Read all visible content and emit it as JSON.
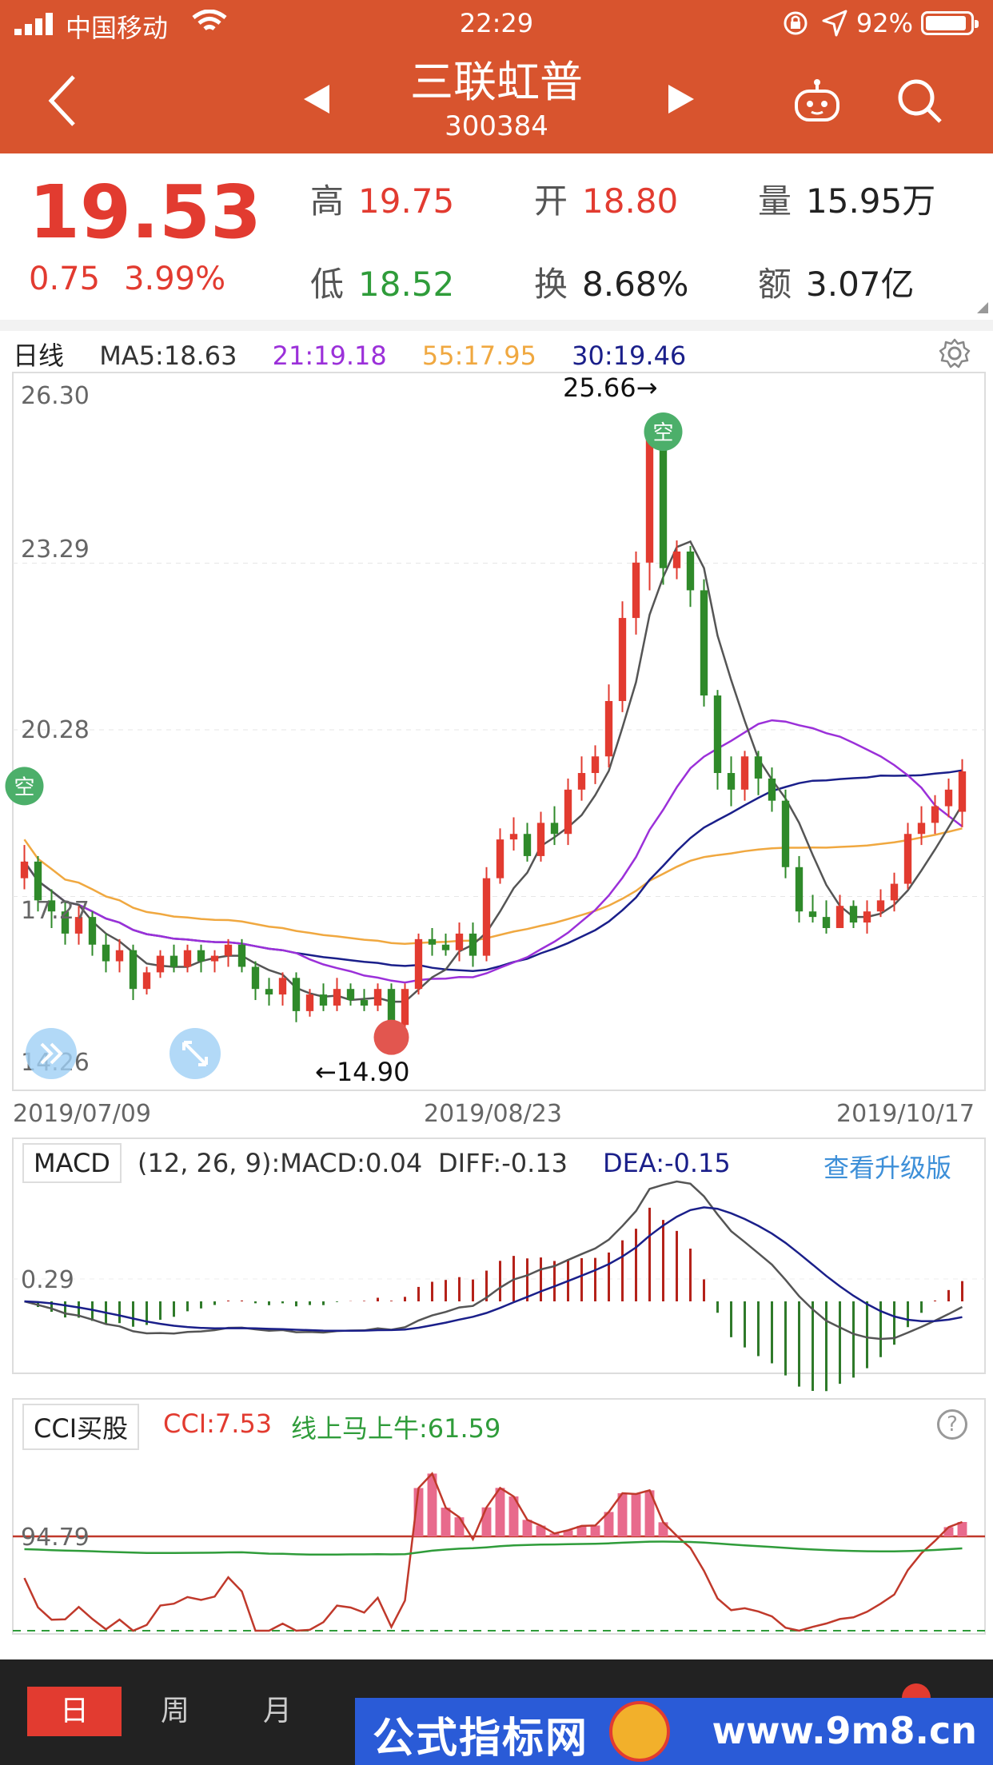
{
  "status_bar": {
    "carrier": "中国移动",
    "time": "22:29",
    "battery": "92%",
    "battery_level": 0.92
  },
  "header": {
    "title": "三联虹普",
    "code": "300384"
  },
  "quote": {
    "price": "19.53",
    "change": "0.75",
    "change_pct": "3.99%",
    "high_label": "高",
    "high": "19.75",
    "open_label": "开",
    "open": "18.80",
    "volume_label": "量",
    "volume": "15.95万",
    "low_label": "低",
    "low": "18.52",
    "turnover_label": "换",
    "turnover": "8.68%",
    "amount_label": "额",
    "amount": "3.07亿"
  },
  "kline": {
    "period": "日线",
    "ma5": "MA5:18.63",
    "ma21": "21:19.18",
    "ma55": "55:17.95",
    "ma30": "30:19.46",
    "y_labels": [
      "26.30",
      "23.29",
      "20.28",
      "17.27",
      "14.26"
    ],
    "high_mark": "25.66→",
    "low_mark": "←14.90",
    "dates": [
      "2019/07/09",
      "2019/08/23",
      "2019/10/17"
    ],
    "signal_label": "空",
    "colors": {
      "ma5": "#555555",
      "ma21": "#9b30d9",
      "ma55": "#f0a840",
      "ma30": "#1a1f8a",
      "up": "#e23b30",
      "down": "#2f8a2a"
    }
  },
  "macd": {
    "title": "MACD",
    "params": "(12, 26, 9):MACD:0.04",
    "diff": "DIFF:-0.13",
    "dea": "DEA:-0.15",
    "upgrade": "查看升级版",
    "y_label": "0.29"
  },
  "cci": {
    "title": "CCI买股",
    "value": "CCI:7.53",
    "line": "线上马上牛:61.59",
    "y_label": "94.79"
  },
  "tabs": [
    "日",
    "周",
    "月"
  ],
  "watermark": {
    "text": "公式指标网",
    "url": "www.9m8.cn"
  },
  "chart_data": [
    {
      "type": "candlestick",
      "title": "",
      "ylim": [
        14.26,
        26.3
      ],
      "x_start": "2019/07/09",
      "x_mid": "2019/08/23",
      "x_end": "2019/10/17",
      "high": 25.66,
      "low": 14.9,
      "series": [
        {
          "name": "MA5",
          "value": 18.63
        },
        {
          "name": "21",
          "value": 19.18
        },
        {
          "name": "55",
          "value": 17.95
        },
        {
          "name": "30",
          "value": 19.46
        }
      ],
      "candles": [
        [
          17.6,
          17.9,
          18.2,
          17.4
        ],
        [
          17.9,
          17.2,
          18.0,
          17.0
        ],
        [
          17.2,
          17.0,
          17.4,
          16.7
        ],
        [
          17.0,
          16.6,
          17.2,
          16.4
        ],
        [
          16.6,
          16.9,
          17.1,
          16.4
        ],
        [
          16.9,
          16.4,
          17.0,
          16.2
        ],
        [
          16.4,
          16.1,
          16.6,
          15.9
        ],
        [
          16.1,
          16.3,
          16.5,
          15.9
        ],
        [
          16.3,
          15.6,
          16.4,
          15.4
        ],
        [
          15.6,
          15.9,
          16.0,
          15.5
        ],
        [
          15.9,
          16.2,
          16.3,
          15.8
        ],
        [
          16.2,
          16.0,
          16.4,
          15.9
        ],
        [
          16.0,
          16.3,
          16.4,
          15.9
        ],
        [
          16.3,
          16.1,
          16.4,
          15.9
        ],
        [
          16.1,
          16.2,
          16.3,
          15.9
        ],
        [
          16.2,
          16.4,
          16.5,
          16.0
        ],
        [
          16.4,
          16.0,
          16.5,
          15.9
        ],
        [
          16.0,
          15.6,
          16.1,
          15.4
        ],
        [
          15.6,
          15.5,
          15.8,
          15.3
        ],
        [
          15.5,
          15.8,
          15.9,
          15.3
        ],
        [
          15.8,
          15.2,
          15.9,
          15.0
        ],
        [
          15.2,
          15.5,
          15.6,
          15.1
        ],
        [
          15.5,
          15.3,
          15.7,
          15.2
        ],
        [
          15.3,
          15.6,
          15.8,
          15.2
        ],
        [
          15.6,
          15.4,
          15.7,
          15.3
        ],
        [
          15.4,
          15.3,
          15.6,
          15.2
        ],
        [
          15.3,
          15.6,
          15.7,
          15.2
        ],
        [
          15.6,
          14.95,
          15.7,
          14.9
        ],
        [
          14.95,
          15.6,
          15.7,
          14.9
        ],
        [
          15.6,
          16.5,
          16.6,
          15.5
        ],
        [
          16.5,
          16.4,
          16.7,
          16.2
        ],
        [
          16.4,
          16.3,
          16.6,
          16.2
        ],
        [
          16.3,
          16.6,
          16.8,
          16.1
        ],
        [
          16.6,
          16.2,
          16.8,
          16.0
        ],
        [
          16.2,
          17.6,
          17.8,
          16.1
        ],
        [
          17.6,
          18.3,
          18.5,
          17.5
        ],
        [
          18.3,
          18.4,
          18.7,
          18.1
        ],
        [
          18.4,
          18.0,
          18.6,
          17.9
        ],
        [
          18.0,
          18.6,
          18.8,
          17.9
        ],
        [
          18.6,
          18.4,
          18.9,
          18.2
        ],
        [
          18.4,
          19.2,
          19.4,
          18.2
        ],
        [
          19.2,
          19.5,
          19.8,
          19.0
        ],
        [
          19.5,
          19.8,
          20.0,
          19.3
        ],
        [
          19.8,
          20.8,
          21.1,
          19.6
        ],
        [
          20.8,
          22.3,
          22.6,
          20.6
        ],
        [
          22.3,
          23.3,
          23.5,
          22.0
        ],
        [
          23.3,
          25.6,
          25.66,
          22.8
        ],
        [
          25.6,
          23.2,
          25.0,
          22.9
        ],
        [
          23.2,
          23.5,
          23.7,
          23.0
        ],
        [
          23.5,
          22.8,
          23.6,
          22.5
        ],
        [
          22.8,
          20.9,
          23.0,
          20.7
        ],
        [
          20.9,
          19.5,
          21.0,
          19.2
        ],
        [
          19.5,
          19.2,
          19.8,
          18.9
        ],
        [
          19.2,
          19.8,
          19.9,
          19.0
        ],
        [
          19.8,
          19.4,
          19.9,
          19.1
        ],
        [
          19.4,
          19.0,
          19.6,
          18.8
        ],
        [
          19.0,
          17.8,
          19.2,
          17.6
        ],
        [
          17.8,
          17.0,
          18.0,
          16.8
        ],
        [
          17.0,
          16.9,
          17.3,
          16.8
        ],
        [
          16.9,
          16.7,
          17.2,
          16.6
        ],
        [
          16.7,
          17.1,
          17.3,
          16.7
        ],
        [
          17.1,
          16.8,
          17.2,
          16.7
        ],
        [
          16.8,
          17.0,
          17.2,
          16.6
        ],
        [
          17.0,
          17.2,
          17.4,
          16.9
        ],
        [
          17.2,
          17.5,
          17.7,
          17.0
        ],
        [
          17.5,
          18.4,
          18.6,
          17.4
        ],
        [
          18.4,
          18.6,
          18.9,
          18.2
        ],
        [
          18.6,
          18.9,
          19.1,
          18.4
        ],
        [
          18.9,
          19.2,
          19.4,
          18.7
        ],
        [
          18.8,
          19.53,
          19.75,
          18.52
        ]
      ]
    },
    {
      "type": "line",
      "title": "MACD",
      "params": [
        12,
        26,
        9
      ],
      "series": [
        {
          "name": "MACD",
          "value": 0.04
        },
        {
          "name": "DIFF",
          "value": -0.13
        },
        {
          "name": "DEA",
          "value": -0.15
        }
      ]
    },
    {
      "type": "line",
      "title": "CCI买股",
      "series": [
        {
          "name": "CCI",
          "value": 7.53
        },
        {
          "name": "线上马上牛",
          "value": 61.59
        }
      ]
    }
  ]
}
